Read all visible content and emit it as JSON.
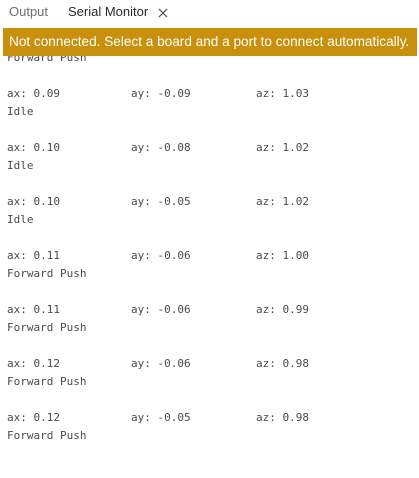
{
  "tabs": {
    "output_label": "Output",
    "serial_monitor_label": "Serial Monitor",
    "close_icon": "close-icon"
  },
  "banner": {
    "text": "Not connected. Select a board and a port to connect automatically."
  },
  "console": {
    "first_line": "Forward Push",
    "entries": [
      {
        "ax": "ax: 0.09",
        "ay": "ay: -0.09",
        "az": "az: 1.03",
        "state": "Idle"
      },
      {
        "ax": "ax: 0.10",
        "ay": "ay: -0.08",
        "az": "az: 1.02",
        "state": "Idle"
      },
      {
        "ax": "ax: 0.10",
        "ay": "ay: -0.05",
        "az": "az: 1.02",
        "state": "Idle"
      },
      {
        "ax": "ax: 0.11",
        "ay": "ay: -0.06",
        "az": "az: 1.00",
        "state": "Forward Push"
      },
      {
        "ax": "ax: 0.11",
        "ay": "ay: -0.06",
        "az": "az: 0.99",
        "state": "Forward Push"
      },
      {
        "ax": "ax: 0.12",
        "ay": "ay: -0.06",
        "az": "az: 0.98",
        "state": "Forward Push"
      },
      {
        "ax": "ax: 0.12",
        "ay": "ay: -0.05",
        "az": "az: 0.98",
        "state": "Forward Push"
      }
    ]
  },
  "colors": {
    "banner_bg": "#c8900d",
    "banner_text": "#ffffff",
    "console_text": "#4a4a4a"
  }
}
